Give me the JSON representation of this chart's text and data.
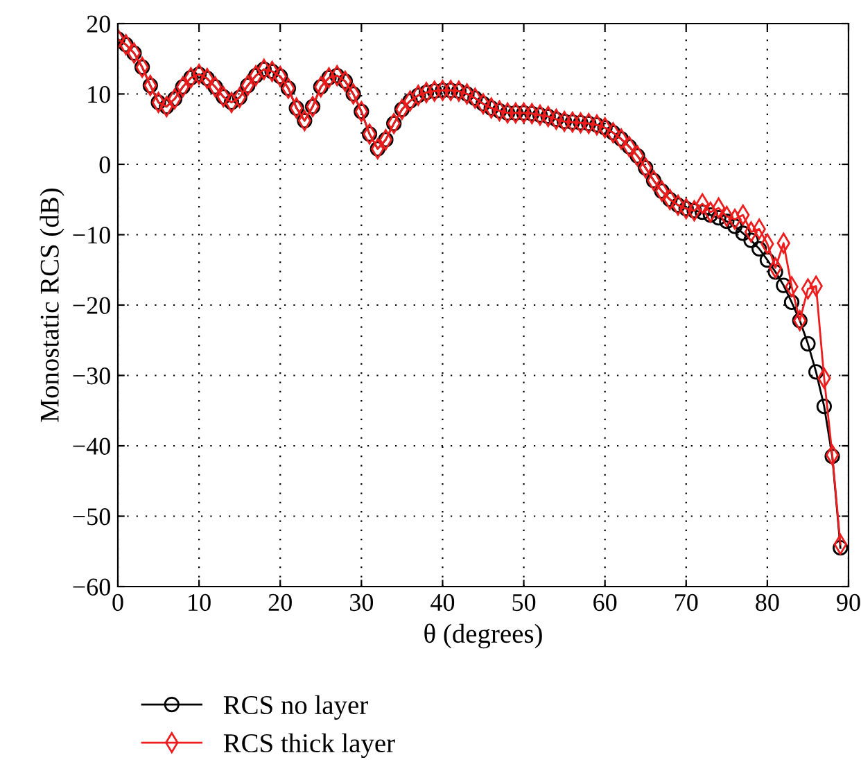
{
  "chart_data": {
    "type": "line",
    "xlabel": "θ (degrees)",
    "ylabel": "Monostatic RCS (dB)",
    "x": [
      0,
      1,
      2,
      3,
      4,
      5,
      6,
      7,
      8,
      9,
      10,
      11,
      12,
      13,
      14,
      15,
      16,
      17,
      18,
      19,
      20,
      21,
      22,
      23,
      24,
      25,
      26,
      27,
      28,
      29,
      30,
      31,
      32,
      33,
      34,
      35,
      36,
      37,
      38,
      39,
      40,
      41,
      42,
      43,
      44,
      45,
      46,
      47,
      48,
      49,
      50,
      51,
      52,
      53,
      54,
      55,
      56,
      57,
      58,
      59,
      60,
      61,
      62,
      63,
      64,
      65,
      66,
      67,
      68,
      69,
      70,
      71,
      72,
      73,
      74,
      75,
      76,
      77,
      78,
      79,
      80,
      81,
      82,
      83,
      84,
      85,
      86,
      87,
      88,
      89
    ],
    "series": [
      {
        "name": "RCS no layer",
        "color": "#000000",
        "marker": "circle",
        "values": [
          17.8,
          17,
          15.8,
          13.8,
          11.2,
          8.8,
          8.2,
          9.3,
          11,
          12.3,
          12.8,
          12.2,
          11,
          9.6,
          8.8,
          9.5,
          11.2,
          12.6,
          13.5,
          13.2,
          12.5,
          10.8,
          8,
          6.2,
          8.2,
          11,
          12.3,
          12.6,
          11.8,
          10,
          7.5,
          4.3,
          2.2,
          3.5,
          5.8,
          7.8,
          9,
          9.8,
          10.2,
          10.4,
          10.5,
          10.5,
          10.4,
          10,
          9.4,
          8.6,
          8,
          7.6,
          7.3,
          7.3,
          7.3,
          7.2,
          7,
          6.8,
          6.4,
          6.1,
          6,
          5.9,
          5.8,
          5.6,
          5.2,
          4.5,
          3.6,
          2.5,
          1.2,
          -0.5,
          -2.3,
          -3.8,
          -5,
          -5.8,
          -6.3,
          -6.6,
          -6.8,
          -7.2,
          -7.6,
          -8.1,
          -8.8,
          -9.8,
          -10.8,
          -12,
          -13.6,
          -15.3,
          -17.2,
          -19.6,
          -22.2,
          -25.5,
          -29.5,
          -34.4,
          -41.5,
          -54.5
        ]
      },
      {
        "name": "RCS thick layer",
        "color": "#ee1c1c",
        "marker": "diamond",
        "values": [
          17.8,
          17,
          15.8,
          13.8,
          11.2,
          8.8,
          8.2,
          9.3,
          11,
          12.3,
          12.8,
          12.2,
          11,
          9.6,
          8.8,
          9.5,
          11.2,
          12.6,
          13.5,
          13.2,
          12.5,
          10.8,
          8,
          6.2,
          8.2,
          11,
          12.3,
          12.6,
          11.8,
          10,
          7.5,
          4.3,
          2.2,
          3.5,
          5.8,
          7.8,
          9,
          9.8,
          10.2,
          10.4,
          10.5,
          10.5,
          10.4,
          10,
          9.4,
          8.6,
          8,
          7.6,
          7.3,
          7.3,
          7.3,
          7.2,
          7,
          6.8,
          6.4,
          6.1,
          6,
          5.9,
          5.8,
          5.6,
          5.2,
          4.5,
          3.6,
          2.5,
          1.2,
          -0.5,
          -2.3,
          -3.8,
          -5,
          -5.8,
          -6.3,
          -6.6,
          -5.6,
          -6.8,
          -6.2,
          -7.4,
          -7.8,
          -7.2,
          -9.6,
          -9.2,
          -11.3,
          -14.7,
          -11.2,
          -17.4,
          -22.2,
          -17.7,
          -17.3,
          -30.4,
          -41.3,
          -54
        ]
      }
    ],
    "xlim": [
      0,
      90
    ],
    "xticks": [
      0,
      10,
      20,
      30,
      40,
      50,
      60,
      70,
      80,
      90
    ],
    "ylim": [
      -60,
      20
    ],
    "yticks": [
      -60,
      -50,
      -40,
      -30,
      -20,
      -10,
      0,
      10,
      20
    ],
    "grid": true,
    "legend": "bottom",
    "line_style": "solid"
  }
}
